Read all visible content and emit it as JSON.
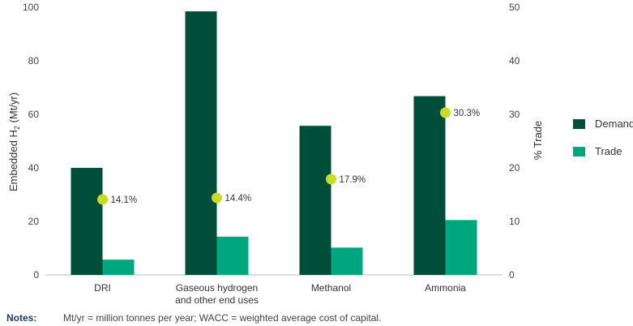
{
  "chart_data": {
    "type": "bar",
    "categories": [
      [
        "DRI"
      ],
      [
        "Gaseous hydrogen",
        "and other end uses"
      ],
      [
        "Methanol"
      ],
      [
        "Ammonia"
      ]
    ],
    "series": [
      {
        "name": "Demand",
        "axis": "left",
        "color": "#004d3a",
        "values": [
          40,
          98.5,
          55.7,
          66.8
        ]
      },
      {
        "name": "Trade",
        "axis": "left",
        "color": "#00a67e",
        "values": [
          5.7,
          14.3,
          10.2,
          20.5
        ]
      }
    ],
    "trade_share": {
      "axis": "right",
      "marker_color": "#c9db29",
      "values": [
        14.1,
        14.4,
        17.9,
        30.3
      ],
      "labels": [
        "14.1%",
        "14.4%",
        "17.9%",
        "30.3%"
      ]
    },
    "ylabel": "Embedded H",
    "ylabel_sub": "2",
    "ylabel_unit": " (Mt/yr)",
    "y2label": "% Trade",
    "ylim": [
      0,
      100
    ],
    "y2lim": [
      0,
      50
    ],
    "yticks": [
      0,
      20,
      40,
      60,
      80,
      100
    ],
    "y2ticks": [
      0,
      10,
      20,
      30,
      40,
      50
    ],
    "legend_position": "right",
    "grid": false
  },
  "notes": {
    "label": "Notes:",
    "text": "Mt/yr = million tonnes per year; WACC = weighted average cost of capital."
  }
}
